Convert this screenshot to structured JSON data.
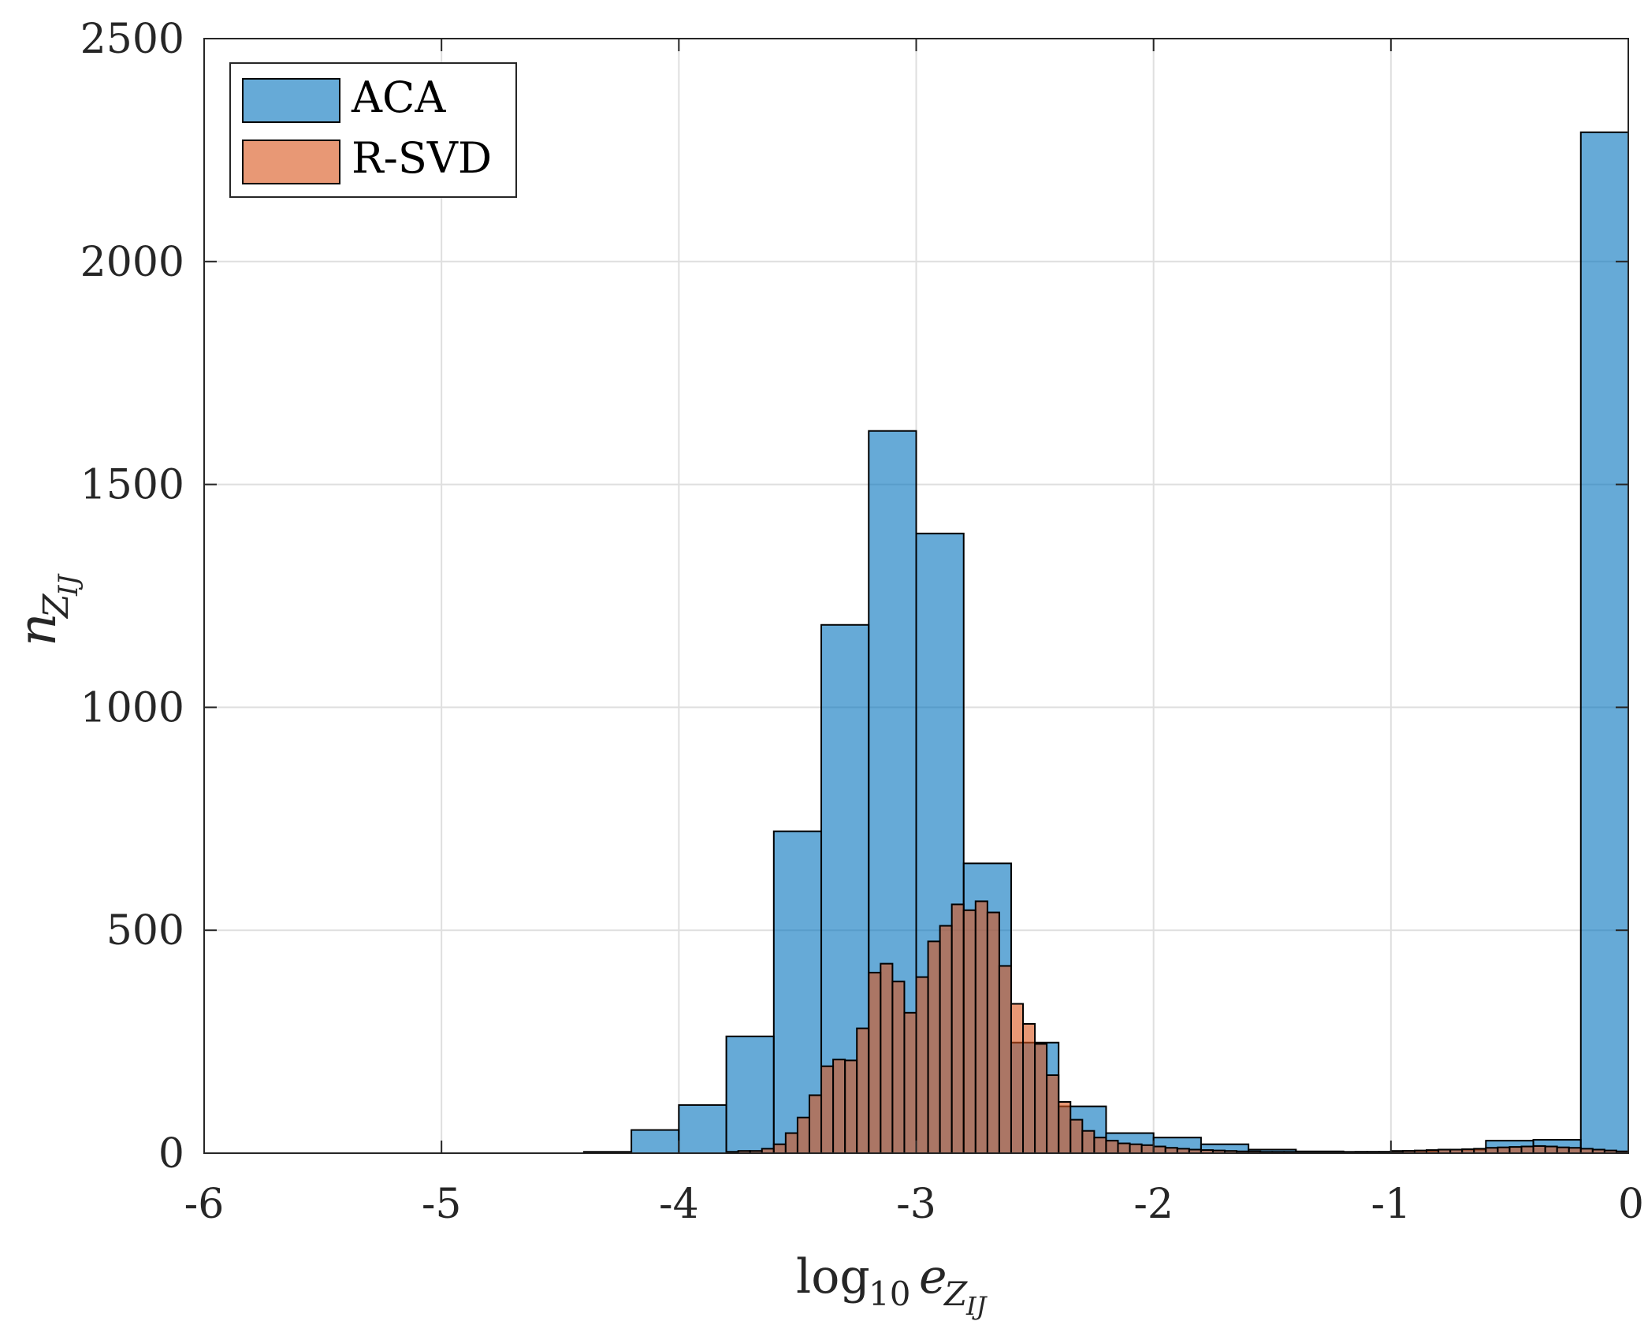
{
  "chart_data": {
    "type": "bar",
    "title": "",
    "xlabel": "log10 e_ZIJ",
    "ylabel": "n_ZIJ",
    "xlim": [
      -6,
      0
    ],
    "ylim": [
      0,
      2500
    ],
    "xticks": [
      -6,
      -5,
      -4,
      -3,
      -2,
      -1,
      0
    ],
    "yticks": [
      0,
      500,
      1000,
      1500,
      2000,
      2500
    ],
    "xtick_labels": [
      "-6",
      "-5",
      "-4",
      "-3",
      "-2",
      "-1",
      "0"
    ],
    "ytick_labels": [
      "0",
      "500",
      "1000",
      "1500",
      "2000",
      "2500"
    ],
    "grid": true,
    "legend_position": "top-left",
    "series": [
      {
        "name": "ACA",
        "color": "#0072BD",
        "bin_edges": [
          -4.4,
          -4.2,
          -4.0,
          -3.8,
          -3.6,
          -3.4,
          -3.2,
          -3.0,
          -2.8,
          -2.6,
          -2.4,
          -2.2,
          -2.0,
          -1.8,
          -1.6,
          -1.4,
          -1.2,
          -1.0,
          -0.8,
          -0.6,
          -0.4,
          -0.2,
          0.0
        ],
        "values": [
          3,
          52,
          108,
          262,
          722,
          1185,
          1620,
          1390,
          650,
          248,
          105,
          45,
          35,
          20,
          8,
          4,
          3,
          5,
          8,
          28,
          30,
          2290
        ]
      },
      {
        "name": "R-SVD",
        "color": "#D95319",
        "bin_edges": [
          -3.8,
          -3.75,
          -3.7,
          -3.65,
          -3.6,
          -3.55,
          -3.5,
          -3.45,
          -3.4,
          -3.35,
          -3.3,
          -3.25,
          -3.2,
          -3.15,
          -3.1,
          -3.05,
          -3.0,
          -2.95,
          -2.9,
          -2.85,
          -2.8,
          -2.75,
          -2.7,
          -2.65,
          -2.6,
          -2.55,
          -2.5,
          -2.45,
          -2.4,
          -2.35,
          -2.3,
          -2.25,
          -2.2,
          -2.15,
          -2.1,
          -2.05,
          -2.0,
          -1.95,
          -1.9,
          -1.85,
          -1.8,
          -1.75,
          -1.7,
          -1.65,
          -1.6,
          -1.55,
          -1.5,
          -1.45,
          -1.4,
          -1.35,
          -1.3,
          -1.25,
          -1.2,
          -1.15,
          -1.1,
          -1.05,
          -1.0,
          -0.95,
          -0.9,
          -0.85,
          -0.8,
          -0.75,
          -0.7,
          -0.65,
          -0.6,
          -0.55,
          -0.5,
          -0.45,
          -0.4,
          -0.35,
          -0.3,
          -0.25,
          -0.2,
          -0.15,
          -0.1,
          -0.05,
          0.0
        ],
        "values": [
          3,
          5,
          5,
          10,
          20,
          45,
          80,
          130,
          195,
          210,
          208,
          280,
          405,
          425,
          385,
          315,
          395,
          475,
          510,
          558,
          545,
          565,
          540,
          420,
          335,
          290,
          245,
          175,
          115,
          75,
          50,
          35,
          28,
          22,
          20,
          18,
          15,
          12,
          10,
          8,
          7,
          6,
          5,
          4,
          4,
          3,
          3,
          3,
          2,
          2,
          2,
          2,
          2,
          3,
          3,
          3,
          4,
          5,
          6,
          7,
          8,
          8,
          9,
          10,
          12,
          13,
          14,
          15,
          16,
          15,
          13,
          12,
          10,
          8,
          6,
          4
        ]
      }
    ]
  }
}
